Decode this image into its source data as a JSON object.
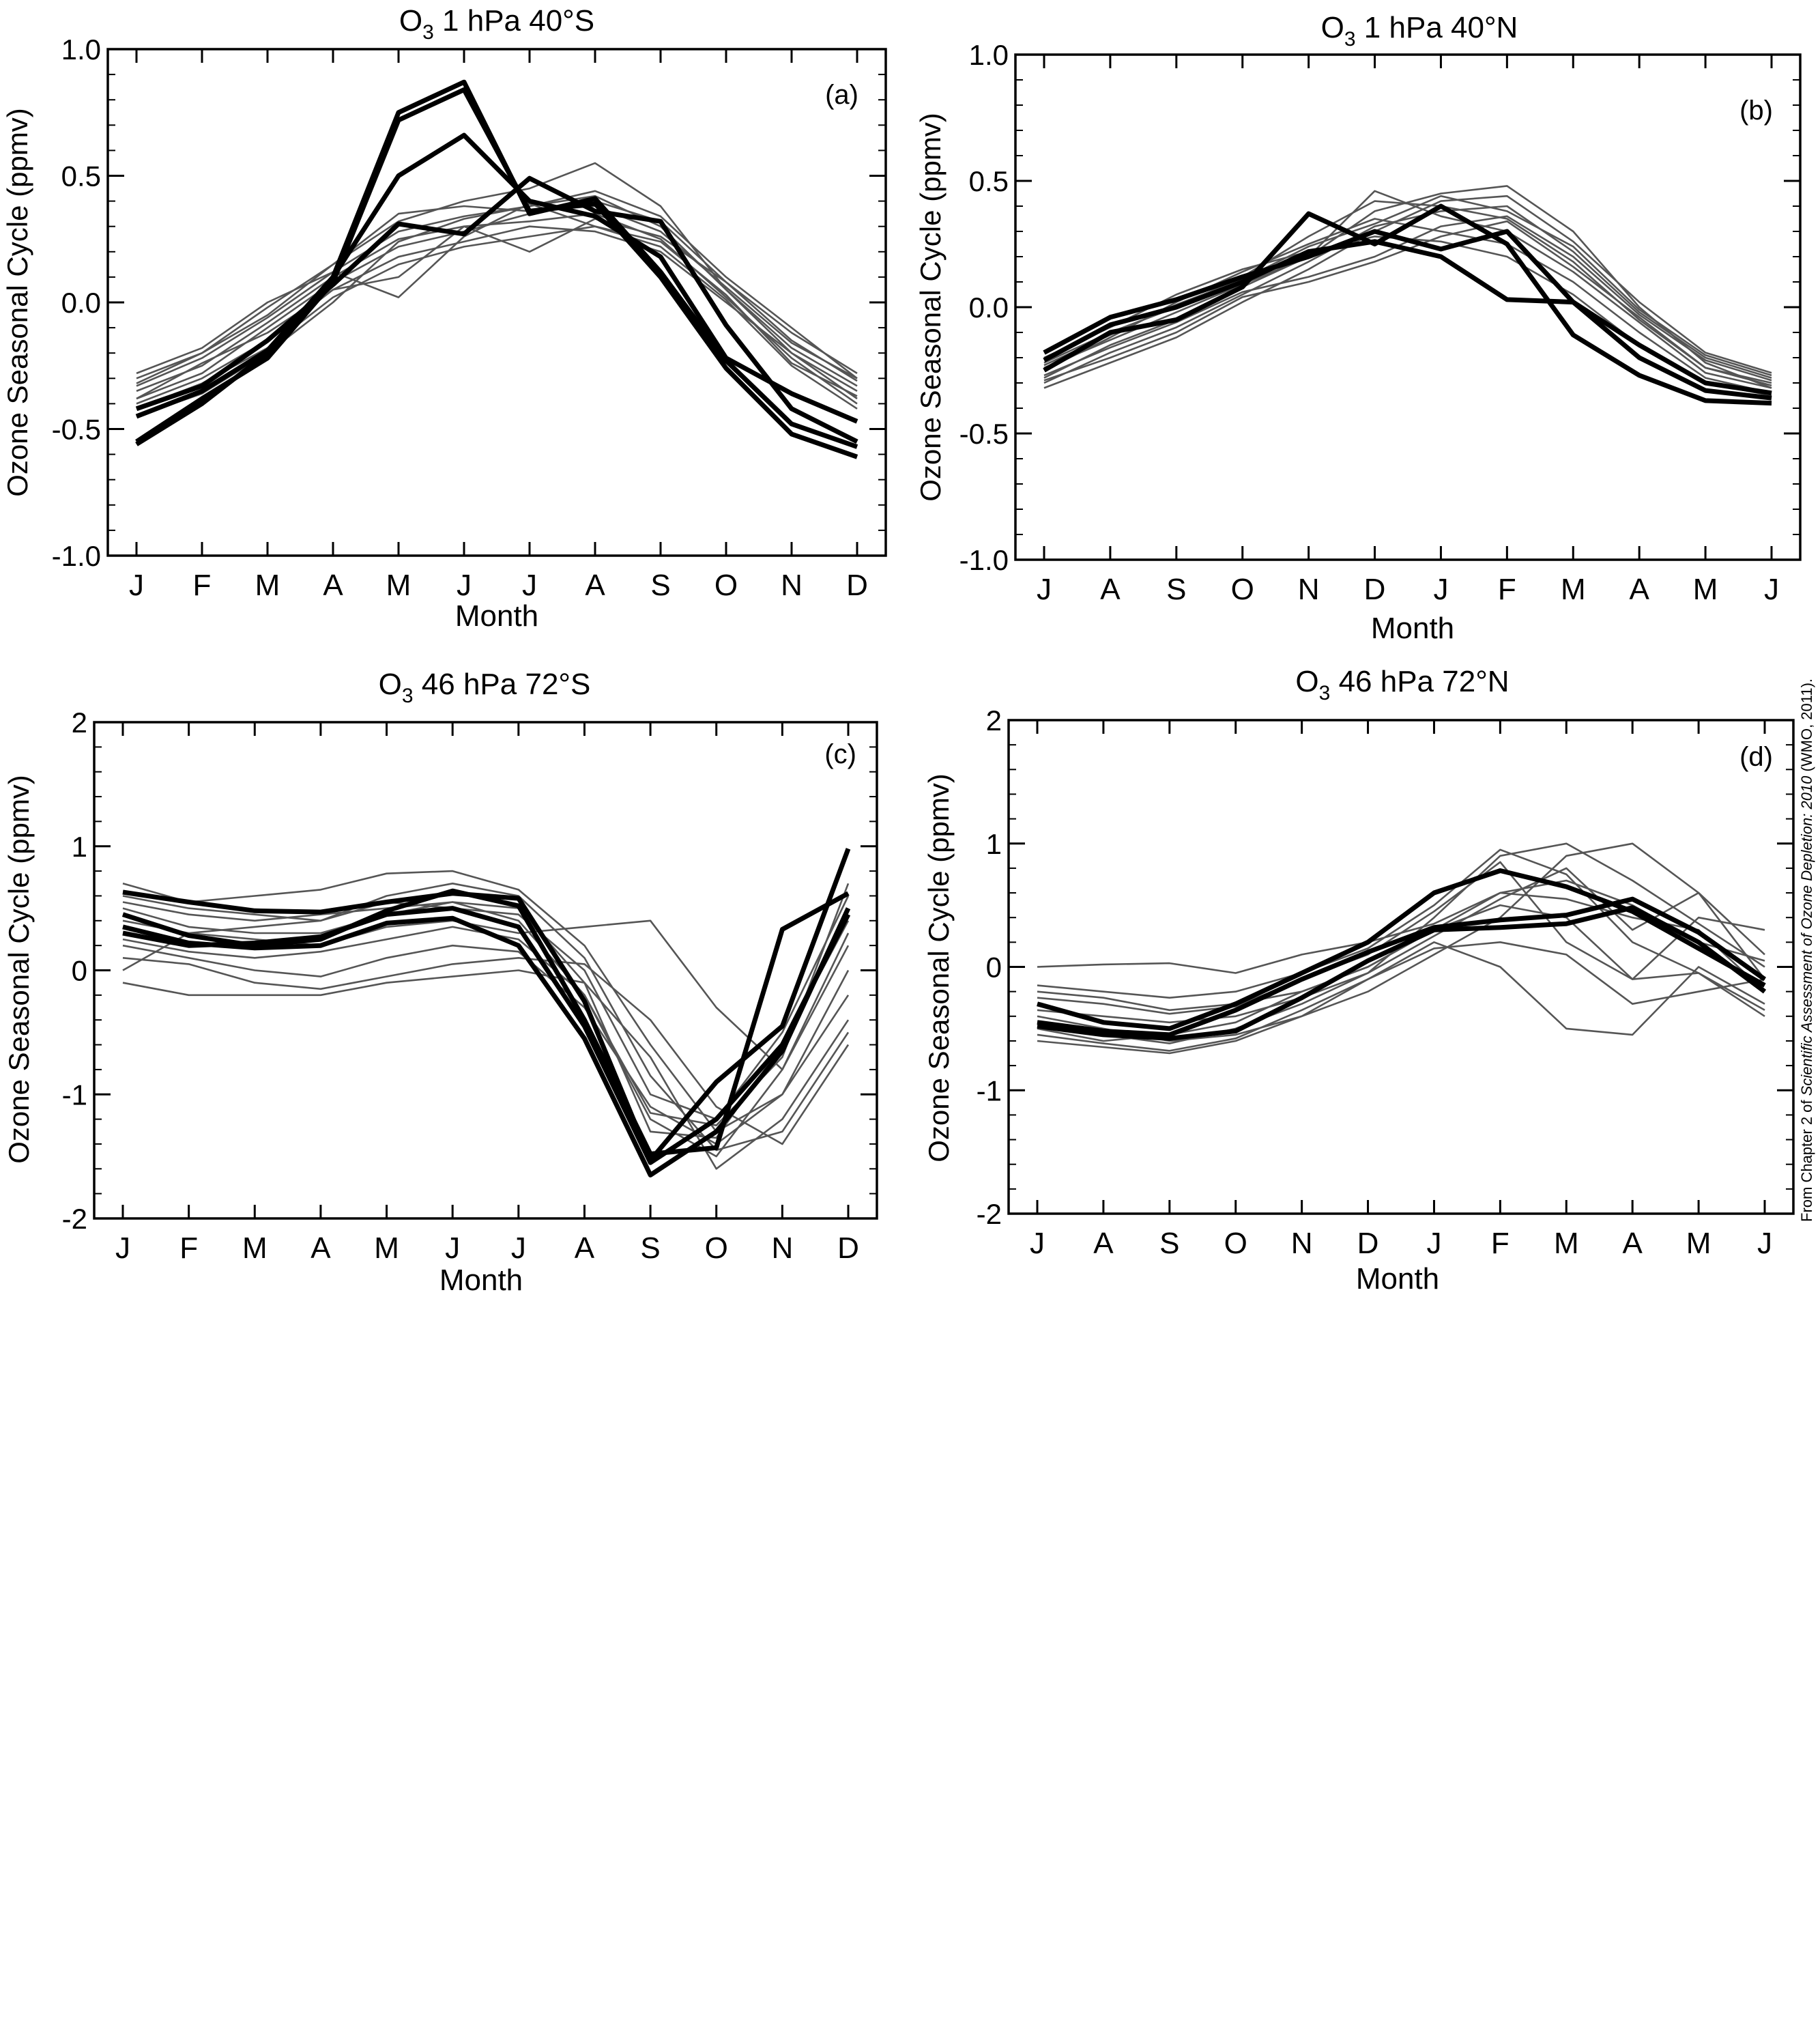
{
  "figure": {
    "credit_prefix": "From Chapter 2 of ",
    "credit_italic": "Scientific Assessment of Ozone Depletion: 2010",
    "credit_suffix": " (WMO, 2011).",
    "colors": {
      "obs": "#000000",
      "model": "#555555",
      "axis": "#000000"
    }
  },
  "chart_data": [
    {
      "type": "line",
      "title": "O3 1 hPa 40°S",
      "title_main": "O",
      "title_sub": "3",
      "title_rest": " 1 hPa 40°S",
      "panel_label": "(a)",
      "xlabel": "Month",
      "ylabel": "Ozone Seasonal Cycle (ppmv)",
      "categories": [
        "J",
        "F",
        "M",
        "A",
        "M",
        "J",
        "J",
        "A",
        "S",
        "O",
        "N",
        "D"
      ],
      "ylim": [
        -1.0,
        1.0
      ],
      "yticks": [
        1.0,
        0.5,
        0.0,
        -0.5,
        -1.0
      ],
      "ytick_labels": [
        "1.0",
        "0.5",
        "0.0",
        "-0.5",
        "-1.0"
      ],
      "series": [
        {
          "style": "obs",
          "values": [
            -0.56,
            -0.4,
            -0.2,
            0.1,
            0.75,
            0.87,
            0.35,
            0.41,
            0.12,
            -0.23,
            -0.48,
            -0.57
          ]
        },
        {
          "style": "obs",
          "values": [
            -0.55,
            -0.38,
            -0.22,
            0.08,
            0.72,
            0.84,
            0.36,
            0.39,
            0.1,
            -0.26,
            -0.52,
            -0.61
          ]
        },
        {
          "style": "obs",
          "values": [
            -0.45,
            -0.35,
            -0.19,
            0.1,
            0.5,
            0.66,
            0.4,
            0.34,
            0.18,
            -0.22,
            -0.36,
            -0.47
          ]
        },
        {
          "style": "obs",
          "values": [
            -0.42,
            -0.33,
            -0.15,
            0.07,
            0.31,
            0.27,
            0.49,
            0.36,
            0.32,
            -0.09,
            -0.42,
            -0.55
          ]
        },
        {
          "style": "model",
          "values": [
            -0.28,
            -0.18,
            0.0,
            0.12,
            0.28,
            0.34,
            0.38,
            0.42,
            0.3,
            0.05,
            -0.2,
            -0.35
          ]
        },
        {
          "style": "model",
          "values": [
            -0.3,
            -0.2,
            -0.02,
            0.15,
            0.32,
            0.4,
            0.45,
            0.55,
            0.38,
            0.05,
            -0.18,
            -0.33
          ]
        },
        {
          "style": "model",
          "values": [
            -0.38,
            -0.28,
            -0.1,
            0.08,
            0.22,
            0.28,
            0.35,
            0.4,
            0.32,
            0.08,
            -0.15,
            -0.31
          ]
        },
        {
          "style": "model",
          "values": [
            -0.4,
            -0.3,
            -0.15,
            0.05,
            0.18,
            0.24,
            0.3,
            0.28,
            0.2,
            0.0,
            -0.2,
            -0.38
          ]
        },
        {
          "style": "model",
          "values": [
            -0.35,
            -0.25,
            -0.08,
            0.1,
            0.25,
            0.3,
            0.32,
            0.35,
            0.25,
            0.02,
            -0.22,
            -0.4
          ]
        },
        {
          "style": "model",
          "values": [
            -0.42,
            -0.32,
            -0.18,
            0.02,
            0.15,
            0.22,
            0.26,
            0.3,
            0.22,
            0.01,
            -0.25,
            -0.42
          ]
        },
        {
          "style": "model",
          "values": [
            -0.32,
            -0.2,
            -0.05,
            0.15,
            0.35,
            0.38,
            0.36,
            0.38,
            0.28,
            0.06,
            -0.16,
            -0.3
          ]
        },
        {
          "style": "model",
          "values": [
            -0.38,
            -0.24,
            -0.12,
            0.05,
            0.1,
            0.3,
            0.2,
            0.33,
            0.26,
            0.08,
            -0.12,
            -0.28
          ]
        },
        {
          "style": "model",
          "values": [
            -0.45,
            -0.36,
            -0.2,
            0.0,
            0.24,
            0.33,
            0.38,
            0.44,
            0.34,
            0.1,
            -0.1,
            -0.3
          ]
        },
        {
          "style": "model",
          "values": [
            -0.33,
            -0.22,
            -0.06,
            0.12,
            0.02,
            0.26,
            0.39,
            0.3,
            0.24,
            0.03,
            -0.24,
            -0.37
          ]
        }
      ]
    },
    {
      "type": "line",
      "title": "O3 1 hPa 40°N",
      "title_main": "O",
      "title_sub": "3",
      "title_rest": " 1 hPa 40°N",
      "panel_label": "(b)",
      "xlabel": "Month",
      "ylabel": "Ozone Seasonal Cycle (ppmv)",
      "categories": [
        "J",
        "A",
        "S",
        "O",
        "N",
        "D",
        "J",
        "F",
        "M",
        "A",
        "M",
        "J"
      ],
      "ylim": [
        -1.0,
        1.0
      ],
      "yticks": [
        1.0,
        0.5,
        0.0,
        -0.5,
        -1.0
      ],
      "ytick_labels": [
        "1.0",
        "0.5",
        "0.0",
        "-0.5",
        "-1.0"
      ],
      "series": [
        {
          "style": "obs",
          "values": [
            -0.25,
            -0.1,
            -0.05,
            0.08,
            0.37,
            0.25,
            0.4,
            0.25,
            -0.11,
            -0.27,
            -0.37,
            -0.38
          ]
        },
        {
          "style": "obs",
          "values": [
            -0.18,
            -0.04,
            0.03,
            0.12,
            0.2,
            0.3,
            0.23,
            0.3,
            0.02,
            -0.2,
            -0.33,
            -0.36
          ]
        },
        {
          "style": "obs",
          "values": [
            -0.21,
            -0.07,
            0.0,
            0.1,
            0.22,
            0.26,
            0.2,
            0.03,
            0.02,
            -0.15,
            -0.3,
            -0.34
          ]
        },
        {
          "style": "model",
          "values": [
            -0.28,
            -0.15,
            -0.05,
            0.08,
            0.2,
            0.38,
            0.45,
            0.48,
            0.3,
            0.0,
            -0.22,
            -0.32
          ]
        },
        {
          "style": "model",
          "values": [
            -0.22,
            -0.1,
            0.0,
            0.12,
            0.28,
            0.42,
            0.4,
            0.35,
            0.18,
            -0.05,
            -0.24,
            -0.3
          ]
        },
        {
          "style": "model",
          "values": [
            -0.3,
            -0.18,
            -0.08,
            0.05,
            0.18,
            0.32,
            0.38,
            0.4,
            0.22,
            -0.02,
            -0.2,
            -0.28
          ]
        },
        {
          "style": "model",
          "values": [
            -0.25,
            -0.12,
            0.02,
            0.14,
            0.25,
            0.35,
            0.3,
            0.25,
            0.1,
            -0.1,
            -0.28,
            -0.34
          ]
        },
        {
          "style": "model",
          "values": [
            -0.2,
            -0.08,
            0.05,
            0.15,
            0.22,
            0.28,
            0.26,
            0.2,
            0.05,
            -0.15,
            -0.3,
            -0.35
          ]
        },
        {
          "style": "model",
          "values": [
            -0.32,
            -0.22,
            -0.12,
            0.02,
            0.15,
            0.3,
            0.42,
            0.44,
            0.26,
            0.02,
            -0.18,
            -0.26
          ]
        },
        {
          "style": "model",
          "values": [
            -0.27,
            -0.16,
            -0.06,
            0.06,
            0.12,
            0.2,
            0.32,
            0.36,
            0.2,
            -0.03,
            -0.21,
            -0.29
          ]
        },
        {
          "style": "model",
          "values": [
            -0.24,
            -0.13,
            -0.02,
            0.09,
            0.2,
            0.46,
            0.36,
            0.3,
            0.14,
            -0.06,
            -0.26,
            -0.32
          ]
        },
        {
          "style": "model",
          "values": [
            -0.29,
            -0.2,
            -0.1,
            0.04,
            0.1,
            0.18,
            0.28,
            0.34,
            0.16,
            -0.04,
            -0.24,
            -0.31
          ]
        },
        {
          "style": "model",
          "values": [
            -0.23,
            -0.11,
            0.01,
            0.11,
            0.24,
            0.33,
            0.44,
            0.38,
            0.24,
            -0.01,
            -0.19,
            -0.27
          ]
        }
      ]
    },
    {
      "type": "line",
      "title": "O3 46 hPa 72°S",
      "title_main": "O",
      "title_sub": "3",
      "title_rest": " 46 hPa 72°S",
      "panel_label": "(c)",
      "xlabel": "Month",
      "ylabel": "Ozone Seasonal Cycle (ppmv)",
      "categories": [
        "J",
        "F",
        "M",
        "A",
        "M",
        "J",
        "J",
        "A",
        "S",
        "O",
        "N",
        "D"
      ],
      "ylim": [
        -2,
        2
      ],
      "yticks": [
        2,
        1,
        0,
        -1,
        -2
      ],
      "ytick_labels": [
        "2",
        "1",
        "0",
        "-1",
        "-2"
      ],
      "series": [
        {
          "style": "obs",
          "values": [
            0.63,
            0.55,
            0.48,
            0.47,
            0.55,
            0.62,
            0.58,
            -0.25,
            -1.53,
            -0.9,
            -0.45,
            0.98
          ]
        },
        {
          "style": "obs",
          "values": [
            0.45,
            0.28,
            0.2,
            0.25,
            0.48,
            0.64,
            0.52,
            -0.4,
            -1.48,
            -1.43,
            0.33,
            0.62
          ]
        },
        {
          "style": "obs",
          "values": [
            0.35,
            0.22,
            0.18,
            0.2,
            0.38,
            0.42,
            0.2,
            -0.55,
            -1.65,
            -1.3,
            -0.65,
            0.5
          ]
        },
        {
          "style": "obs",
          "values": [
            0.3,
            0.2,
            0.22,
            0.27,
            0.45,
            0.5,
            0.35,
            -0.45,
            -1.55,
            -1.2,
            -0.6,
            0.45
          ]
        },
        {
          "style": "model",
          "values": [
            0.7,
            0.55,
            0.6,
            0.65,
            0.78,
            0.8,
            0.65,
            0.2,
            -0.6,
            -1.3,
            -1.0,
            0.0
          ]
        },
        {
          "style": "model",
          "values": [
            0.55,
            0.45,
            0.4,
            0.45,
            0.5,
            0.55,
            0.4,
            -0.2,
            -1.2,
            -1.5,
            -0.8,
            0.3
          ]
        },
        {
          "style": "model",
          "values": [
            0.2,
            0.1,
            0.0,
            -0.05,
            0.1,
            0.2,
            0.15,
            -0.3,
            -1.1,
            -1.4,
            -1.0,
            -0.2
          ]
        },
        {
          "style": "model",
          "values": [
            -0.1,
            -0.2,
            -0.2,
            -0.2,
            -0.1,
            -0.05,
            0.0,
            -0.1,
            -0.7,
            -1.6,
            -1.2,
            -0.4
          ]
        },
        {
          "style": "model",
          "values": [
            0.4,
            0.3,
            0.35,
            0.4,
            0.55,
            0.5,
            0.45,
            0.0,
            -1.0,
            -1.2,
            -0.5,
            0.6
          ]
        },
        {
          "style": "model",
          "values": [
            0.0,
            0.3,
            0.25,
            0.2,
            0.35,
            0.4,
            0.3,
            0.35,
            0.4,
            -0.3,
            -0.8,
            0.2
          ]
        },
        {
          "style": "model",
          "values": [
            0.6,
            0.5,
            0.45,
            0.4,
            0.6,
            0.7,
            0.6,
            0.1,
            -0.85,
            -1.45,
            -1.3,
            -0.5
          ]
        },
        {
          "style": "model",
          "values": [
            0.5,
            0.35,
            0.3,
            0.3,
            0.45,
            0.55,
            0.5,
            -0.1,
            -1.3,
            -1.35,
            -0.6,
            0.4
          ]
        },
        {
          "style": "model",
          "values": [
            0.1,
            0.05,
            -0.1,
            -0.15,
            -0.05,
            0.05,
            0.1,
            0.05,
            -0.4,
            -1.1,
            -1.4,
            -0.6
          ]
        },
        {
          "style": "model",
          "values": [
            0.25,
            0.15,
            0.1,
            0.15,
            0.25,
            0.35,
            0.25,
            -0.2,
            -1.15,
            -1.25,
            -0.7,
            0.7
          ]
        }
      ]
    },
    {
      "type": "line",
      "title": "O3 46 hPa 72°N",
      "title_main": "O",
      "title_sub": "3",
      "title_rest": " 46 hPa 72°N",
      "panel_label": "(d)",
      "xlabel": "Month",
      "ylabel": "Ozone Seasonal Cycle (ppmv)",
      "categories": [
        "J",
        "A",
        "S",
        "O",
        "N",
        "D",
        "J",
        "F",
        "M",
        "A",
        "M",
        "J"
      ],
      "ylim": [
        -2,
        2
      ],
      "yticks": [
        2,
        1,
        0,
        -1,
        -2
      ],
      "ytick_labels": [
        "2",
        "1",
        "0",
        "-1",
        "-2"
      ],
      "series": [
        {
          "style": "obs",
          "values": [
            -0.3,
            -0.45,
            -0.5,
            -0.3,
            -0.05,
            0.2,
            0.6,
            0.78,
            0.65,
            0.45,
            0.15,
            -0.15
          ]
        },
        {
          "style": "obs",
          "values": [
            -0.45,
            -0.52,
            -0.55,
            -0.35,
            -0.1,
            0.12,
            0.32,
            0.38,
            0.42,
            0.55,
            0.28,
            -0.1
          ]
        },
        {
          "style": "obs",
          "values": [
            -0.48,
            -0.55,
            -0.58,
            -0.52,
            -0.25,
            0.05,
            0.3,
            0.32,
            0.35,
            0.48,
            0.2,
            -0.2
          ]
        },
        {
          "style": "model",
          "values": [
            -0.6,
            -0.65,
            -0.7,
            -0.6,
            -0.4,
            -0.2,
            0.1,
            0.4,
            0.9,
            1.0,
            0.6,
            0.1
          ]
        },
        {
          "style": "model",
          "values": [
            0.0,
            0.02,
            0.03,
            -0.05,
            0.1,
            0.2,
            0.35,
            0.6,
            0.7,
            0.5,
            0.2,
            0.05
          ]
        },
        {
          "style": "model",
          "values": [
            -0.2,
            -0.25,
            -0.35,
            -0.3,
            -0.2,
            0.0,
            0.3,
            0.5,
            0.4,
            -0.1,
            -0.05,
            -0.4
          ]
        },
        {
          "style": "model",
          "values": [
            -0.4,
            -0.5,
            -0.6,
            -0.55,
            -0.4,
            -0.1,
            0.2,
            0.0,
            -0.5,
            -0.55,
            0.0,
            -0.3
          ]
        },
        {
          "style": "model",
          "values": [
            -0.35,
            -0.4,
            -0.45,
            -0.4,
            -0.25,
            -0.05,
            0.4,
            0.9,
            1.0,
            0.7,
            0.35,
            0.0
          ]
        },
        {
          "style": "model",
          "values": [
            -0.45,
            -0.55,
            -0.62,
            -0.5,
            -0.3,
            -0.05,
            0.25,
            0.55,
            0.8,
            0.3,
            0.6,
            -0.1
          ]
        },
        {
          "style": "model",
          "values": [
            -0.25,
            -0.3,
            -0.38,
            -0.32,
            -0.1,
            0.1,
            0.45,
            0.85,
            0.2,
            -0.1,
            0.4,
            0.3
          ]
        },
        {
          "style": "model",
          "values": [
            -0.5,
            -0.6,
            -0.55,
            -0.45,
            -0.2,
            0.0,
            0.3,
            0.6,
            0.55,
            0.4,
            0.3,
            -0.2
          ]
        },
        {
          "style": "model",
          "values": [
            -0.55,
            -0.62,
            -0.68,
            -0.58,
            -0.35,
            -0.1,
            0.15,
            0.2,
            0.1,
            -0.3,
            -0.2,
            -0.1
          ]
        },
        {
          "style": "model",
          "values": [
            -0.15,
            -0.2,
            -0.25,
            -0.2,
            -0.05,
            0.15,
            0.5,
            0.95,
            0.75,
            0.2,
            -0.05,
            -0.35
          ]
        }
      ]
    }
  ]
}
